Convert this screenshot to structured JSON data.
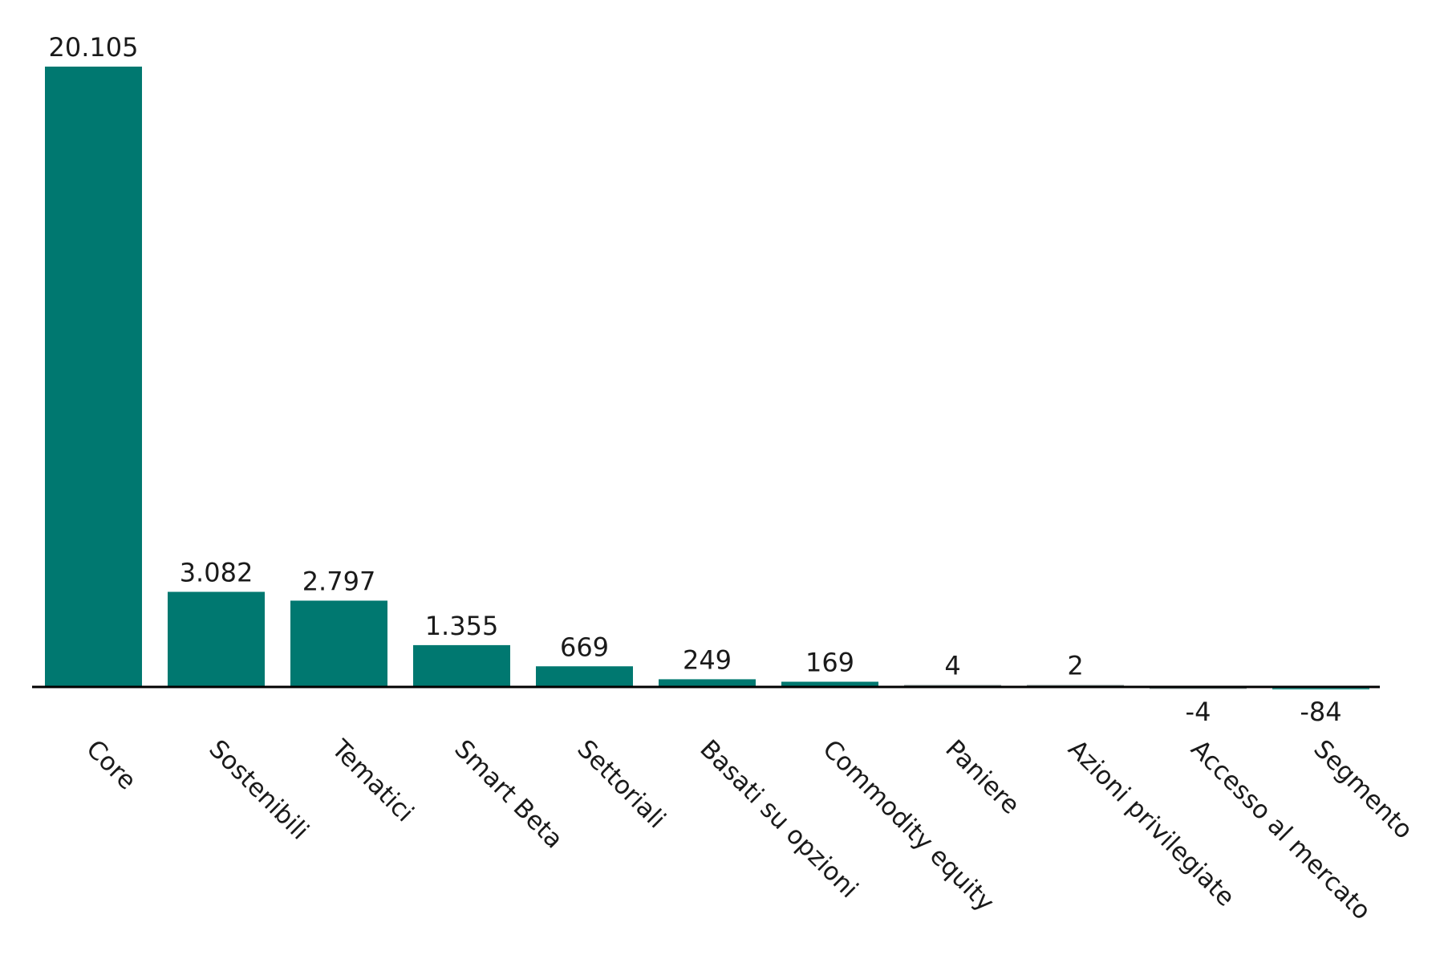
{
  "chart_data": {
    "type": "bar",
    "categories": [
      "Core",
      "Sostenibili",
      "Tematici",
      "Smart Beta",
      "Settoriali",
      "Basati su opzioni",
      "Commodity equity",
      "Paniere",
      "Azioni privilegiate",
      "Accesso al mercato",
      "Segmento"
    ],
    "values": [
      20105,
      3082,
      2797,
      1355,
      669,
      249,
      169,
      4,
      2,
      -4,
      -84
    ],
    "value_labels": [
      "20.105",
      "3.082",
      "2.797",
      "1.355",
      "669",
      "249",
      "169",
      "4",
      "2",
      "-4",
      "-84"
    ],
    "title": "",
    "xlabel": "",
    "ylabel": "",
    "ylim": [
      -200,
      20500
    ],
    "grid": false,
    "legend": "none",
    "colors": {
      "bar": "#007870",
      "negative_bar": "#3aa99f",
      "axis": "#000000",
      "text": "#1a1a1a"
    }
  }
}
